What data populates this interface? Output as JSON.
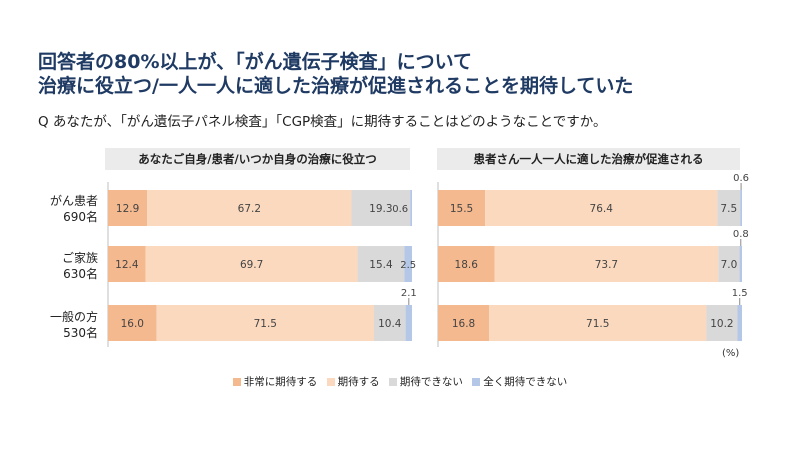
{
  "header": {
    "title_line1": "回答者の80%以上が、「がん遺伝子検査」について",
    "title_line2": "治療に役立つ/一人一人に適した治療が促進されることを期待していた",
    "question": "Q あなたが、「がん遺伝子パネル検査」「CGP検査」に期待することはどのようなことですか。"
  },
  "chart_data": {
    "type": "bar",
    "stacked": true,
    "orientation": "horizontal",
    "unit_label": "(%)",
    "colors": [
      "#f5b98f",
      "#fad9bf",
      "#d9d9d9",
      "#b4c7e7"
    ],
    "categories": [
      {
        "name": "がん患者",
        "n": "690名"
      },
      {
        "name": "ご家族",
        "n": "630名"
      },
      {
        "name": "一般の方",
        "n": "530名"
      }
    ],
    "legend": [
      "非常に期待する",
      "期待する",
      "期待できない",
      "全く期待できない"
    ],
    "panels": [
      {
        "title": "あなたご自身/患者/いつか自身の治療に役立つ",
        "rows": [
          [
            12.9,
            67.2,
            19.3,
            0.6
          ],
          [
            12.4,
            69.7,
            15.4,
            2.5
          ],
          [
            16.0,
            71.5,
            10.4,
            2.1
          ]
        ],
        "labels": [
          [
            "12.9",
            "67.2",
            "19.3",
            "0.6"
          ],
          [
            "12.4",
            "69.7",
            "15.4",
            "2.5"
          ],
          [
            "16.0",
            "71.5",
            "10.4",
            "2.1"
          ]
        ]
      },
      {
        "title": "患者さん一人一人に適した治療が促進される",
        "rows": [
          [
            15.5,
            76.4,
            7.5,
            0.6
          ],
          [
            18.6,
            73.7,
            7.0,
            0.8
          ],
          [
            16.8,
            71.5,
            10.2,
            1.5
          ]
        ],
        "labels": [
          [
            "15.5",
            "76.4",
            "7.5",
            "0.6"
          ],
          [
            "18.6",
            "73.7",
            "7.0",
            "0.8"
          ],
          [
            "16.8",
            "71.5",
            "10.2",
            "1.5"
          ]
        ]
      }
    ]
  }
}
